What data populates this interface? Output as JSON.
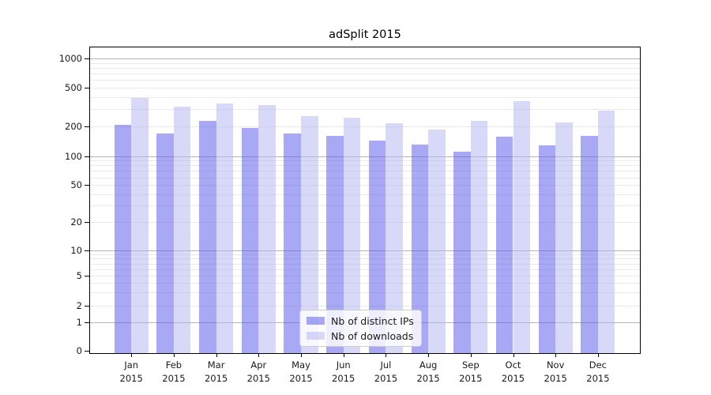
{
  "chart_data": {
    "type": "bar",
    "title": "adSplit 2015",
    "categories": [
      "Jan 2015",
      "Feb 2015",
      "Mar 2015",
      "Apr 2015",
      "May 2015",
      "Jun 2015",
      "Jul 2015",
      "Aug 2015",
      "Sep 2015",
      "Oct 2015",
      "Nov 2015",
      "Dec 2015"
    ],
    "series": [
      {
        "name": "Nb of distinct IPs",
        "color": "rgba(81,81,235,0.5)",
        "values": [
          210,
          170,
          230,
          195,
          170,
          162,
          143,
          131,
          110,
          159,
          128,
          160
        ]
      },
      {
        "name": "Nb of downloads",
        "color": "rgba(177,177,241,0.5)",
        "values": [
          395,
          318,
          345,
          330,
          258,
          247,
          218,
          188,
          228,
          366,
          222,
          290
        ]
      }
    ],
    "y_axis": {
      "scale": "symlog",
      "tick_values": [
        0,
        1,
        2,
        5,
        10,
        20,
        50,
        100,
        200,
        500,
        1000
      ],
      "tick_labels": [
        "0",
        "1",
        "2",
        "5",
        "10",
        "20",
        "50",
        "100",
        "200",
        "500",
        "1000"
      ],
      "ylim": [
        0,
        1300
      ],
      "grid": "both"
    },
    "x_axis": {
      "tick_labels_two_line": true
    },
    "legend": {
      "position": "lower center",
      "entries": [
        "Nb of distinct IPs",
        "Nb of downloads"
      ]
    }
  },
  "colors": {
    "bar_distinct_ips": "rgba(81,81,235,0.5)",
    "bar_downloads": "rgba(177,177,241,0.5)",
    "grid_major": "#b4b4b4",
    "grid_minor": "#e9e9e9",
    "spine": "#000000",
    "text": "#1a1a1a",
    "legend_bg": "rgba(255,255,255,0.8)",
    "legend_border": "#cccccc"
  }
}
